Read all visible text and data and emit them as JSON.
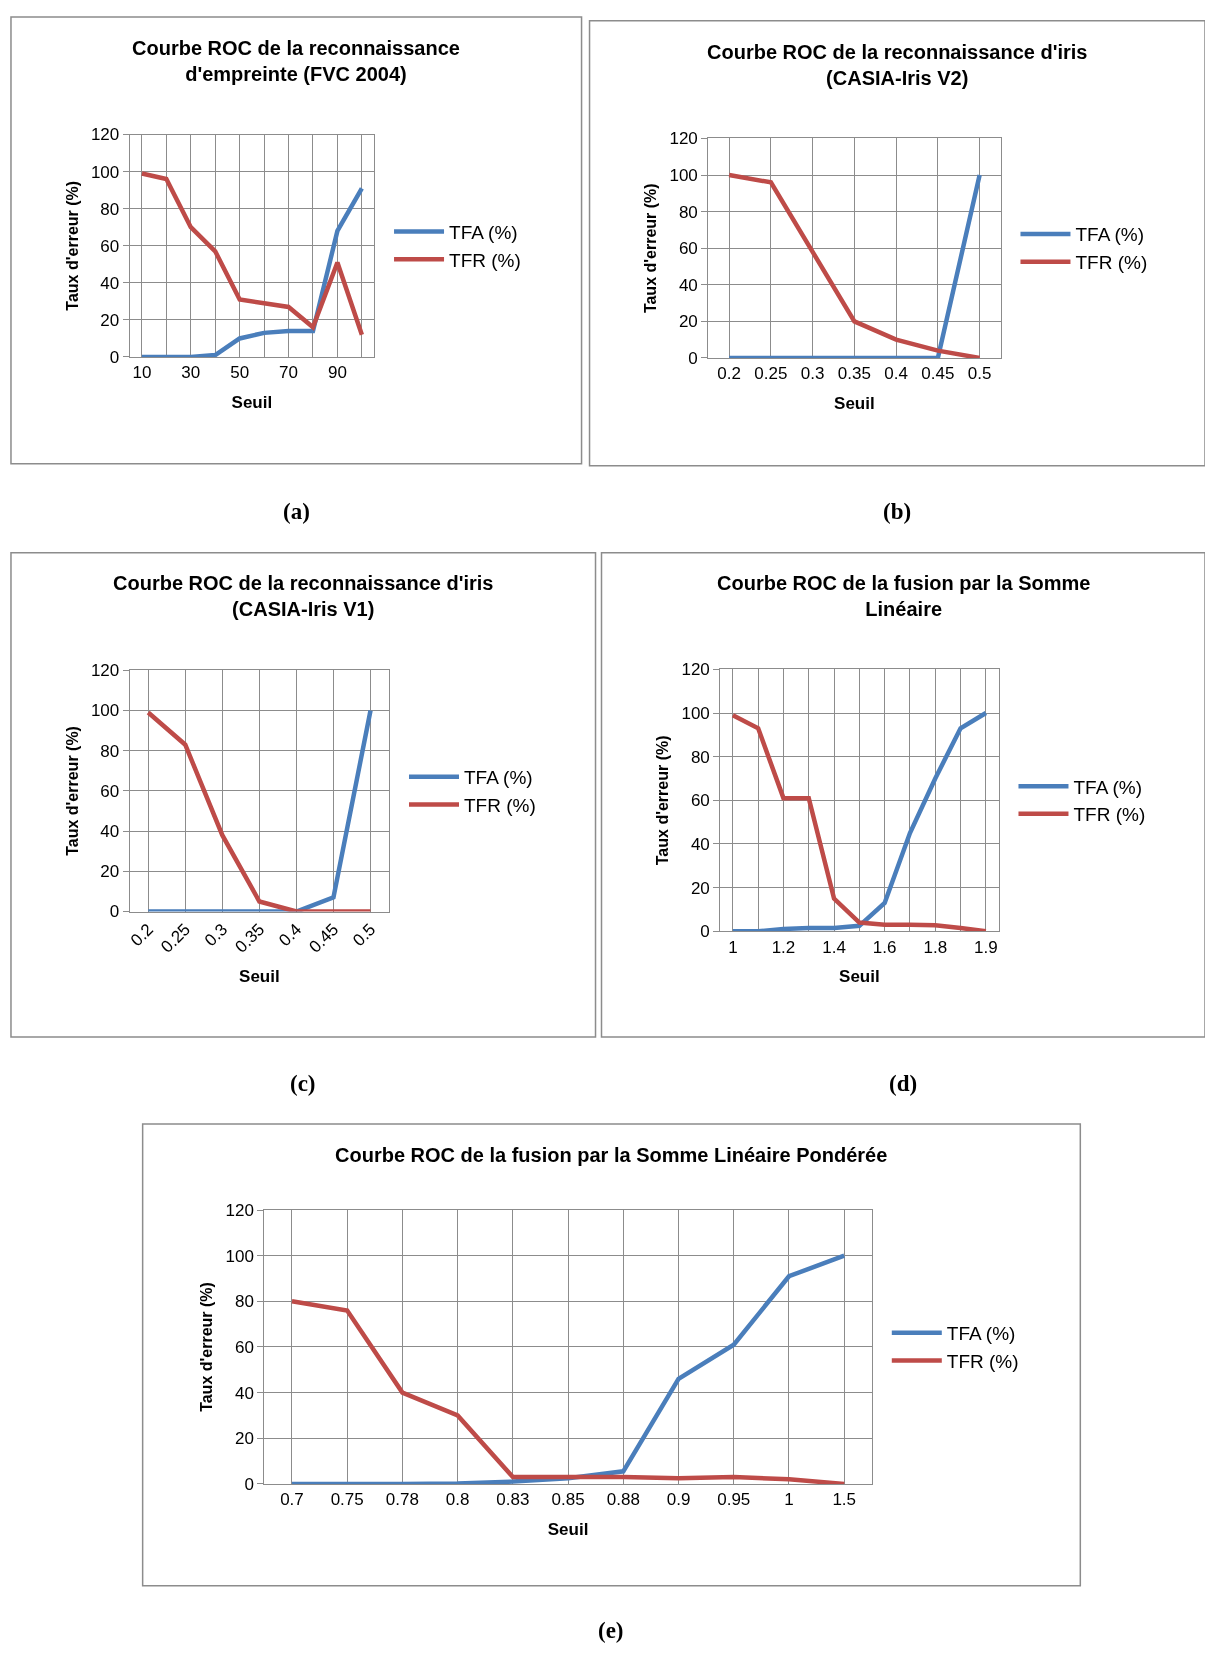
{
  "chart_data": [
    {
      "type": "line",
      "title": "Courbe ROC de la reconnaissance d'empreinte (FVC 2004)",
      "xlabel": "Seuil",
      "ylabel": "Taux d'erreur (%)",
      "categories": [
        "10",
        null,
        "30",
        null,
        "50",
        null,
        "70",
        null,
        "90",
        null
      ],
      "series": [
        {
          "name": "TFA (%)",
          "color": "#4a7ebb",
          "values": [
            0,
            0,
            0,
            1,
            10,
            13,
            14,
            14,
            68,
            91
          ]
        },
        {
          "name": "TFR (%)",
          "color": "#be4b48",
          "values": [
            99,
            96,
            70,
            57,
            31,
            29,
            27,
            16,
            51,
            12
          ]
        }
      ],
      "ylim": [
        0,
        120
      ],
      "yticks": [
        0,
        20,
        40,
        60,
        80,
        100,
        120
      ],
      "grid": true,
      "legend": "right",
      "marker": "none",
      "line_style": "solid",
      "annotations": [
        "(a)"
      ]
    },
    {
      "type": "line",
      "title": "Courbe ROC de la reconnaissance d'iris (CASIA-Iris V2)",
      "xlabel": "Seuil",
      "ylabel": "Taux d'erreur (%)",
      "categories": [
        "0.2",
        "0.25",
        "0.3",
        "0.35",
        "0.4",
        "0.45",
        "0.5"
      ],
      "series": [
        {
          "name": "TFA (%)",
          "color": "#4a7ebb",
          "values": [
            0,
            0,
            0,
            0,
            0,
            0,
            100
          ]
        },
        {
          "name": "TFR (%)",
          "color": "#be4b48",
          "values": [
            100,
            96,
            58,
            20,
            10,
            4,
            0
          ]
        }
      ],
      "ylim": [
        0,
        120
      ],
      "yticks": [
        0,
        20,
        40,
        60,
        80,
        100,
        120
      ],
      "grid": true,
      "legend": "right",
      "marker": "none",
      "line_style": "solid",
      "annotations": [
        "(b)"
      ]
    },
    {
      "type": "line",
      "title": "Courbe ROC de la reconnaissance d'iris (CASIA-Iris V1)",
      "xlabel": "Seuil",
      "ylabel": "Taux d'erreur (%)",
      "categories": [
        "0.2",
        "0.25",
        "0.3",
        "0.35",
        "0.4",
        "0.45",
        "0.5"
      ],
      "series": [
        {
          "name": "TFA (%)",
          "color": "#4a7ebb",
          "values": [
            0,
            0,
            0,
            0,
            0,
            7,
            100
          ]
        },
        {
          "name": "TFR (%)",
          "color": "#be4b48",
          "values": [
            99,
            83,
            38,
            5,
            0,
            0,
            0
          ]
        }
      ],
      "ylim": [
        0,
        120
      ],
      "yticks": [
        0,
        20,
        40,
        60,
        80,
        100,
        120
      ],
      "grid": true,
      "legend": "right",
      "marker": "none",
      "line_style": "solid",
      "annotations": [
        "(c)"
      ]
    },
    {
      "type": "line",
      "title": "Courbe ROC de la fusion par la Somme Linéaire",
      "xlabel": "Seuil",
      "ylabel": "Taux d'erreur (%)",
      "categories": [
        "1",
        null,
        "1.2",
        null,
        "1.4",
        null,
        "1.6",
        null,
        "1.8",
        null,
        "1.9"
      ],
      "series": [
        {
          "name": "TFA (%)",
          "color": "#4a7ebb",
          "values": [
            0,
            0,
            1,
            1.5,
            1.5,
            2.5,
            13,
            45,
            70,
            93,
            100
          ]
        },
        {
          "name": "TFR (%)",
          "color": "#be4b48",
          "values": [
            99,
            93,
            61,
            61,
            15,
            4,
            3,
            3,
            2.8,
            1.5,
            0
          ]
        }
      ],
      "ylim": [
        0,
        120
      ],
      "yticks": [
        0,
        20,
        40,
        60,
        80,
        100,
        120
      ],
      "grid": true,
      "legend": "right",
      "marker": "none",
      "line_style": "solid",
      "annotations": [
        "(d)"
      ]
    },
    {
      "type": "line",
      "title": "Courbe ROC de la fusion par la Somme Linéaire Pondérée",
      "xlabel": "Seuil",
      "ylabel": "Taux d'erreur (%)",
      "categories": [
        "0.7",
        "0.75",
        "0.78",
        "0.8",
        "0.83",
        "0.85",
        "0.88",
        "0.9",
        "0.95",
        "1",
        "1.5"
      ],
      "series": [
        {
          "name": "TFA (%)",
          "color": "#4a7ebb",
          "values": [
            0,
            0,
            0,
            0.2,
            1,
            2.5,
            5.5,
            46,
            61,
            91,
            100
          ]
        },
        {
          "name": "TFR (%)",
          "color": "#be4b48",
          "values": [
            80,
            76,
            40,
            30,
            3,
            3,
            3,
            2.5,
            3,
            2,
            0
          ]
        }
      ],
      "ylim": [
        0,
        120
      ],
      "yticks": [
        0,
        20,
        40,
        60,
        80,
        100,
        120
      ],
      "grid": true,
      "legend": "right",
      "marker": "none",
      "line_style": "solid",
      "annotations": [
        "(e)"
      ]
    }
  ]
}
